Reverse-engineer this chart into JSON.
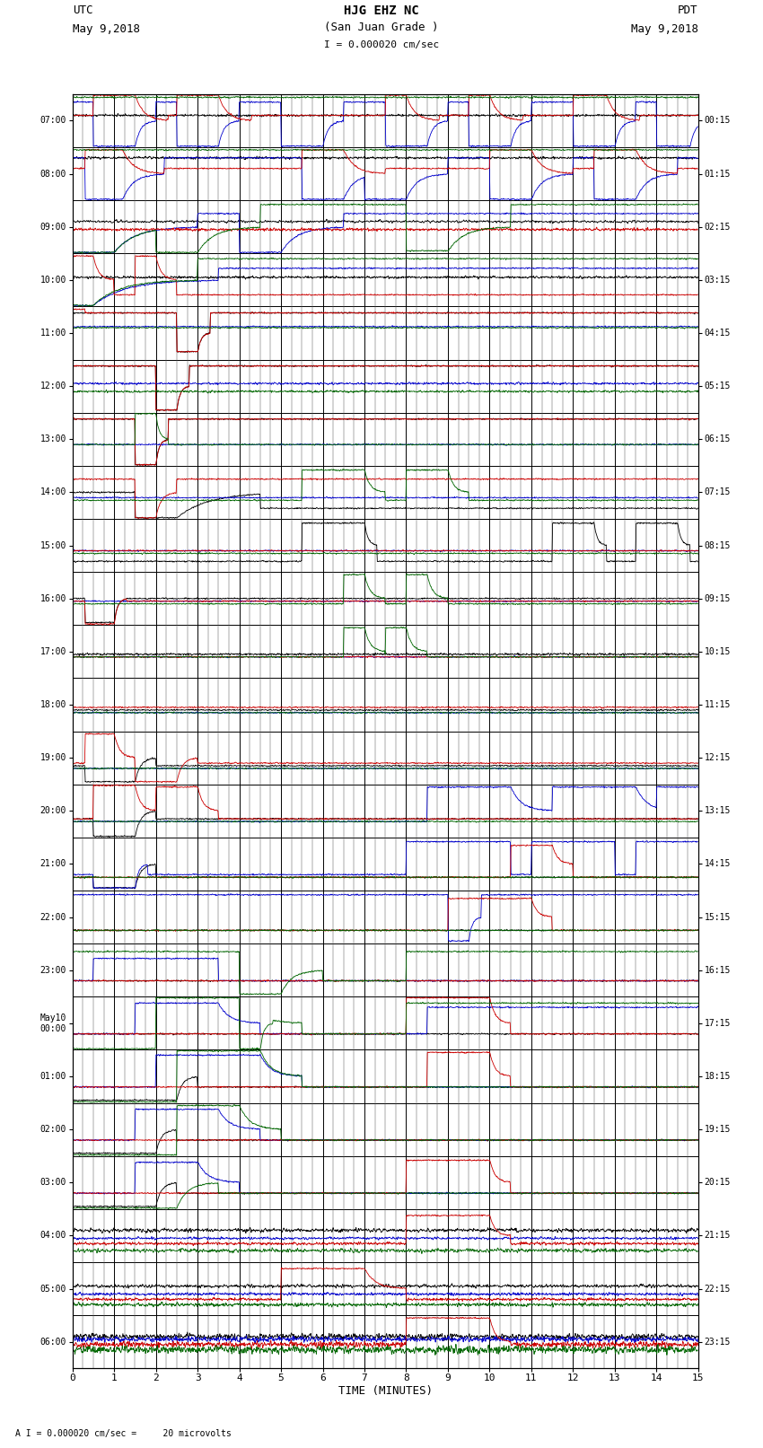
{
  "title_line1": "HJG EHZ NC",
  "title_line2": "(San Juan Grade )",
  "scale_label": "I = 0.000020 cm/sec",
  "utc_label": "UTC",
  "pdt_label": "PDT",
  "date_left": "May 9,2018",
  "date_right": "May 9,2018",
  "xlabel": "TIME (MINUTES)",
  "footnote": "A I = 0.000020 cm/sec =     20 microvolts",
  "utc_times_left": [
    "07:00",
    "08:00",
    "09:00",
    "10:00",
    "11:00",
    "12:00",
    "13:00",
    "14:00",
    "15:00",
    "16:00",
    "17:00",
    "18:00",
    "19:00",
    "20:00",
    "21:00",
    "22:00",
    "23:00",
    "May10\n00:00",
    "01:00",
    "02:00",
    "03:00",
    "04:00",
    "05:00",
    "06:00"
  ],
  "pdt_times_right": [
    "00:15",
    "01:15",
    "02:15",
    "03:15",
    "04:15",
    "05:15",
    "06:15",
    "07:15",
    "08:15",
    "09:15",
    "10:15",
    "11:15",
    "12:15",
    "13:15",
    "14:15",
    "15:15",
    "16:15",
    "17:15",
    "18:15",
    "19:15",
    "20:15",
    "21:15",
    "22:15",
    "23:15"
  ],
  "num_rows": 24,
  "minutes_per_row": 15,
  "background_color": "#ffffff",
  "trace_colors": [
    "#000000",
    "#0000cc",
    "#cc0000",
    "#006600"
  ],
  "trace_linewidth": 0.6,
  "grid_major_color": "#000000",
  "grid_minor_color": "#888888"
}
